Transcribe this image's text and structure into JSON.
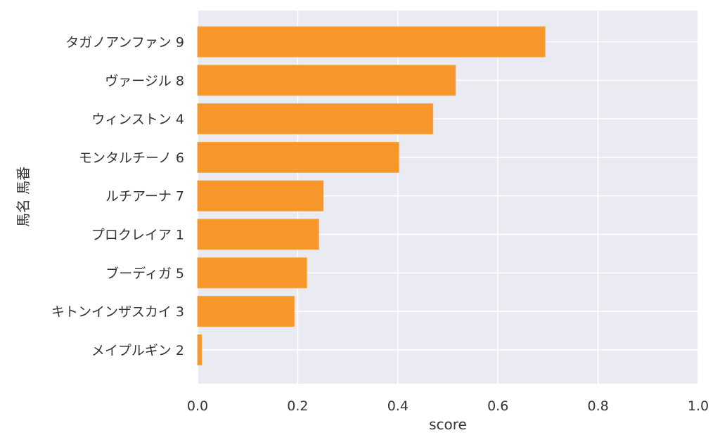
{
  "chart_data": {
    "type": "bar",
    "orientation": "horizontal",
    "categories": [
      "タガノアンファン 9",
      "ヴァージル 8",
      "ウィンストン 4",
      "モンタルチーノ 6",
      "ルチアーナ 7",
      "プロクレイア 1",
      "ブーディガ 5",
      "キトンインザスカイ 3",
      "メイプルギン 2"
    ],
    "values": [
      0.694,
      0.515,
      0.47,
      0.402,
      0.251,
      0.242,
      0.218,
      0.193,
      0.008
    ],
    "xlabel": "score",
    "ylabel": "馬名 馬番",
    "xlim": [
      0.0,
      1.0
    ],
    "xticks": [
      "0.0",
      "0.2",
      "0.4",
      "0.6",
      "0.8",
      "1.0"
    ],
    "grid": true,
    "colors": {
      "bar": "#f7962a",
      "bar_edge": "#f7a540",
      "background": "#eaeaf2",
      "grid": "#ffffff"
    }
  }
}
